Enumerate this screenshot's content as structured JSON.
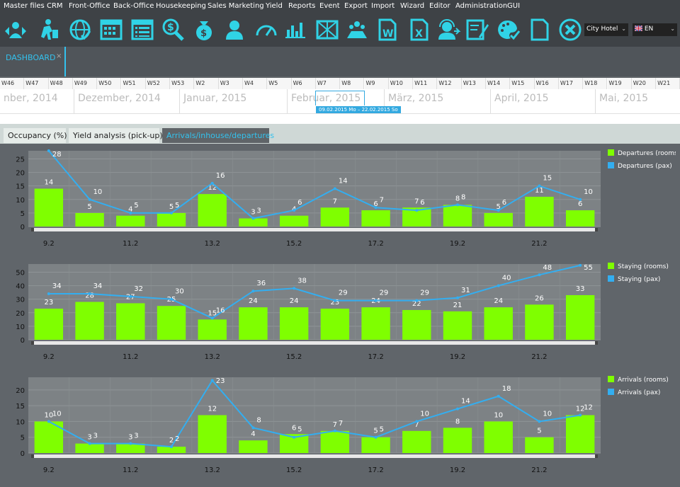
{
  "menu": [
    "Master files",
    "CRM",
    "Front-Office",
    "Back-Office",
    "Housekeeping",
    "Sales Marketing",
    "Yield",
    "Reports",
    "Event",
    "Export",
    "Import",
    "Wizard",
    "Editor",
    "Administration",
    "GUI"
  ],
  "toolbar_icons": [
    "guest-arrival-icon",
    "departure-walker-icon",
    "globe-check-icon",
    "calendar-grid-icon",
    "list-window-icon",
    "money-search-icon",
    "money-bag-icon",
    "user-icon",
    "gauge-icon",
    "bar-chart-icon",
    "floor-plan-icon",
    "conference-icon",
    "word-document-icon",
    "excel-document-icon",
    "support-headset-icon",
    "edit-form-icon",
    "palette-check-icon",
    "blank-page-icon",
    "close-circle-icon"
  ],
  "hotel_select": "City Hotel",
  "lang_select": "EN",
  "dashboard_tab": {
    "label": "DASHBOARD",
    "close": "×"
  },
  "timeline": {
    "weeks": [
      "W46",
      "W47",
      "W48",
      "W49",
      "W50",
      "W51",
      "W52",
      "W53",
      "W2",
      "W3",
      "W4",
      "W5",
      "W6",
      "W7",
      "W8",
      "W9",
      "W10",
      "W11",
      "W12",
      "W13",
      "W14",
      "W15",
      "W16",
      "W17",
      "W18",
      "W19",
      "W20",
      "W21"
    ],
    "months": [
      "nber, 2014",
      "Dezember, 2014",
      "Januar, 2015",
      "Februar, 2015",
      "März, 2015",
      "April, 2015",
      "Mai, 2015"
    ],
    "range_label": "09.02.2015 Mo – 22.02.2015 So"
  },
  "subtabs": [
    "Occupancy (%)",
    "Yield analysis (pick-up)",
    "Arrivals/inhouse/departures"
  ],
  "colors": {
    "bar": "#7fff00",
    "line": "#33aef0",
    "plot_bg": "#7d8285",
    "panel_bg": "#60656a"
  },
  "chart_data": [
    {
      "type": "bar",
      "categories": [
        "9.2",
        "10.2",
        "11.2",
        "12.2",
        "13.2",
        "14.2",
        "15.2",
        "16.2",
        "17.2",
        "18.2",
        "19.2",
        "20.2",
        "21.2",
        "22.2"
      ],
      "x_tick_labels": [
        "9.2",
        "11.2",
        "13.2",
        "15.2",
        "17.2",
        "19.2",
        "21.2"
      ],
      "ylim": [
        0,
        28
      ],
      "yticks": [
        0,
        5,
        10,
        15,
        20,
        25
      ],
      "series": [
        {
          "name": "Departures (rooms)",
          "kind": "bar",
          "values": [
            14,
            5,
            4,
            5,
            12,
            3,
            4,
            7,
            6,
            7,
            8,
            5,
            11,
            6
          ]
        },
        {
          "name": "Departures (pax)",
          "kind": "line",
          "values": [
            28,
            10,
            5,
            5,
            16,
            3,
            6,
            14,
            7,
            6,
            8,
            6,
            15,
            10
          ]
        }
      ]
    },
    {
      "type": "bar",
      "categories": [
        "9.2",
        "10.2",
        "11.2",
        "12.2",
        "13.2",
        "14.2",
        "15.2",
        "16.2",
        "17.2",
        "18.2",
        "19.2",
        "20.2",
        "21.2",
        "22.2"
      ],
      "x_tick_labels": [
        "9.2",
        "11.2",
        "13.2",
        "15.2",
        "17.2",
        "19.2",
        "21.2"
      ],
      "ylim": [
        0,
        56
      ],
      "yticks": [
        0,
        10,
        20,
        30,
        40,
        50
      ],
      "series": [
        {
          "name": "Staying (rooms)",
          "kind": "bar",
          "values": [
            23,
            28,
            27,
            25,
            15,
            24,
            24,
            23,
            24,
            22,
            21,
            24,
            26,
            33
          ]
        },
        {
          "name": "Staying (pax)",
          "kind": "line",
          "values": [
            34,
            34,
            32,
            30,
            16,
            36,
            38,
            29,
            29,
            29,
            31,
            40,
            48,
            55
          ]
        }
      ]
    },
    {
      "type": "bar",
      "categories": [
        "9.2",
        "10.2",
        "11.2",
        "12.2",
        "13.2",
        "14.2",
        "15.2",
        "16.2",
        "17.2",
        "18.2",
        "19.2",
        "20.2",
        "21.2",
        "22.2"
      ],
      "x_tick_labels": [
        "9.2",
        "11.2",
        "13.2",
        "15.2",
        "17.2",
        "19.2",
        "21.2"
      ],
      "ylim": [
        0,
        24
      ],
      "yticks": [
        0,
        5,
        10,
        15,
        20
      ],
      "series": [
        {
          "name": "Arrivals (rooms)",
          "kind": "bar",
          "values": [
            10,
            3,
            3,
            2,
            12,
            4,
            6,
            7,
            5,
            7,
            8,
            10,
            5,
            12
          ]
        },
        {
          "name": "Arrivals (pax)",
          "kind": "line",
          "values": [
            10,
            3,
            3,
            2,
            23,
            8,
            5,
            7,
            5,
            10,
            14,
            18,
            10,
            12
          ]
        }
      ]
    }
  ]
}
